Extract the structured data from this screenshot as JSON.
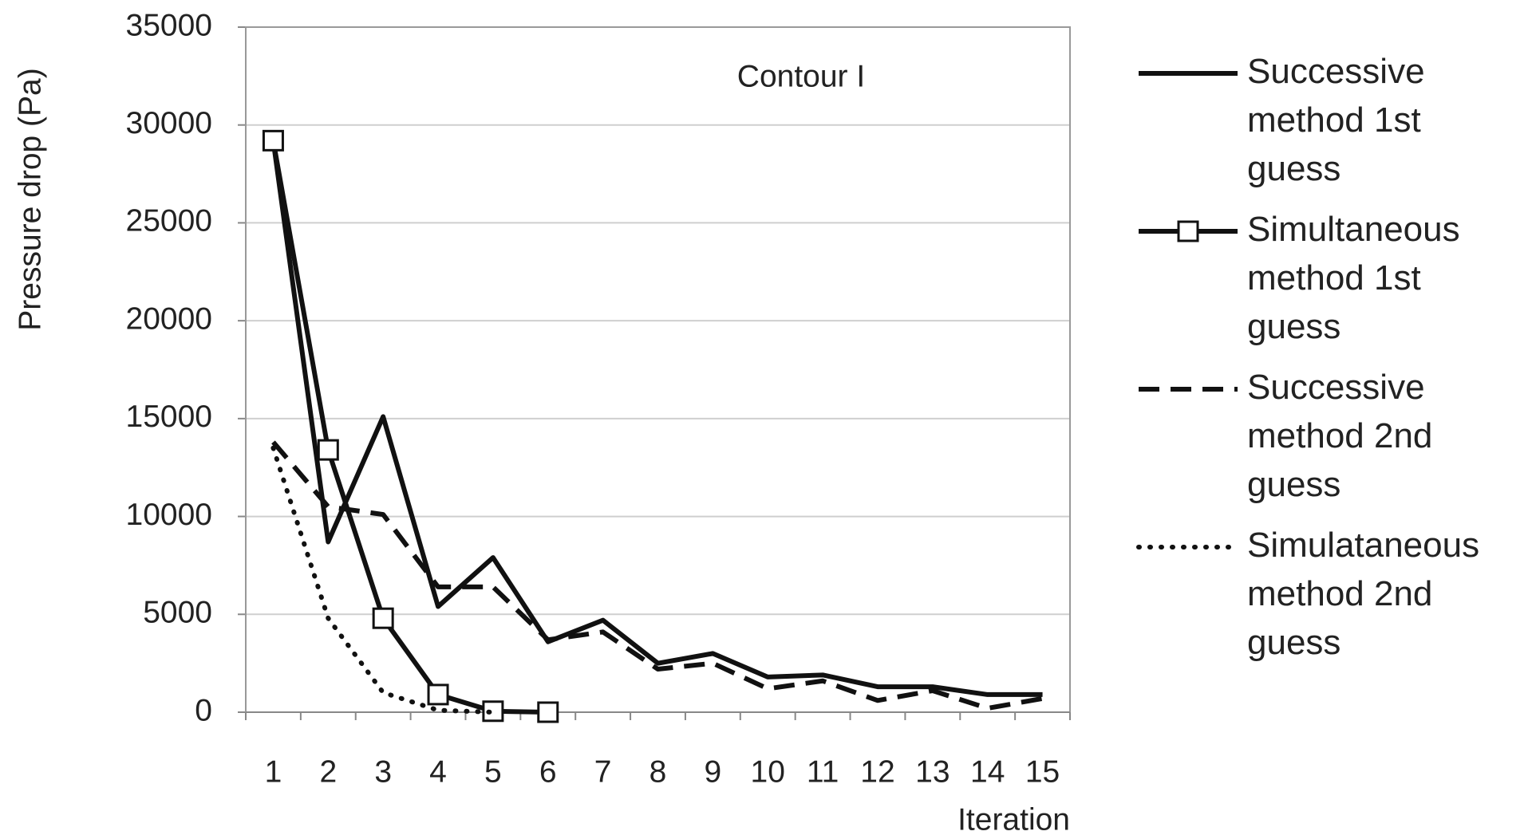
{
  "chart_data": {
    "type": "line",
    "annotation": "Contour I",
    "x_label": "Iteration",
    "y_label": "Pressure drop (Pa)",
    "categories": [
      "1",
      "2",
      "3",
      "4",
      "5",
      "6",
      "7",
      "8",
      "9",
      "10",
      "11",
      "12",
      "13",
      "14",
      "15"
    ],
    "series": [
      {
        "name": "Successive method 1st guess",
        "color": "#111111",
        "line_style": "solid",
        "marker": "none",
        "values": [
          29200,
          8700,
          15100,
          5400,
          7900,
          3600,
          4700,
          2500,
          3000,
          1800,
          1900,
          1300,
          1300,
          900,
          900
        ]
      },
      {
        "name": "Simultaneous method 1st guess",
        "color": "#111111",
        "line_style": "solid",
        "marker": "square",
        "values": [
          29200,
          13400,
          4800,
          900,
          50,
          0,
          null,
          null,
          null,
          null,
          null,
          null,
          null,
          null,
          null
        ]
      },
      {
        "name": "Successive method 2nd guess",
        "color": "#111111",
        "line_style": "dashed",
        "marker": "none",
        "values": [
          13800,
          10500,
          10100,
          6400,
          6400,
          3700,
          4100,
          2200,
          2500,
          1200,
          1600,
          600,
          1100,
          200,
          700
        ]
      },
      {
        "name": "Simulataneous method 2nd guess",
        "color": "#111111",
        "line_style": "dotted",
        "marker": "none",
        "values": [
          13500,
          4800,
          1000,
          100,
          0,
          null,
          null,
          null,
          null,
          null,
          null,
          null,
          null,
          null,
          null
        ]
      }
    ],
    "ylim": [
      0,
      35000
    ],
    "yticks": [
      0,
      5000,
      10000,
      15000,
      20000,
      25000,
      30000,
      35000
    ],
    "grid": true,
    "legend": "right"
  }
}
